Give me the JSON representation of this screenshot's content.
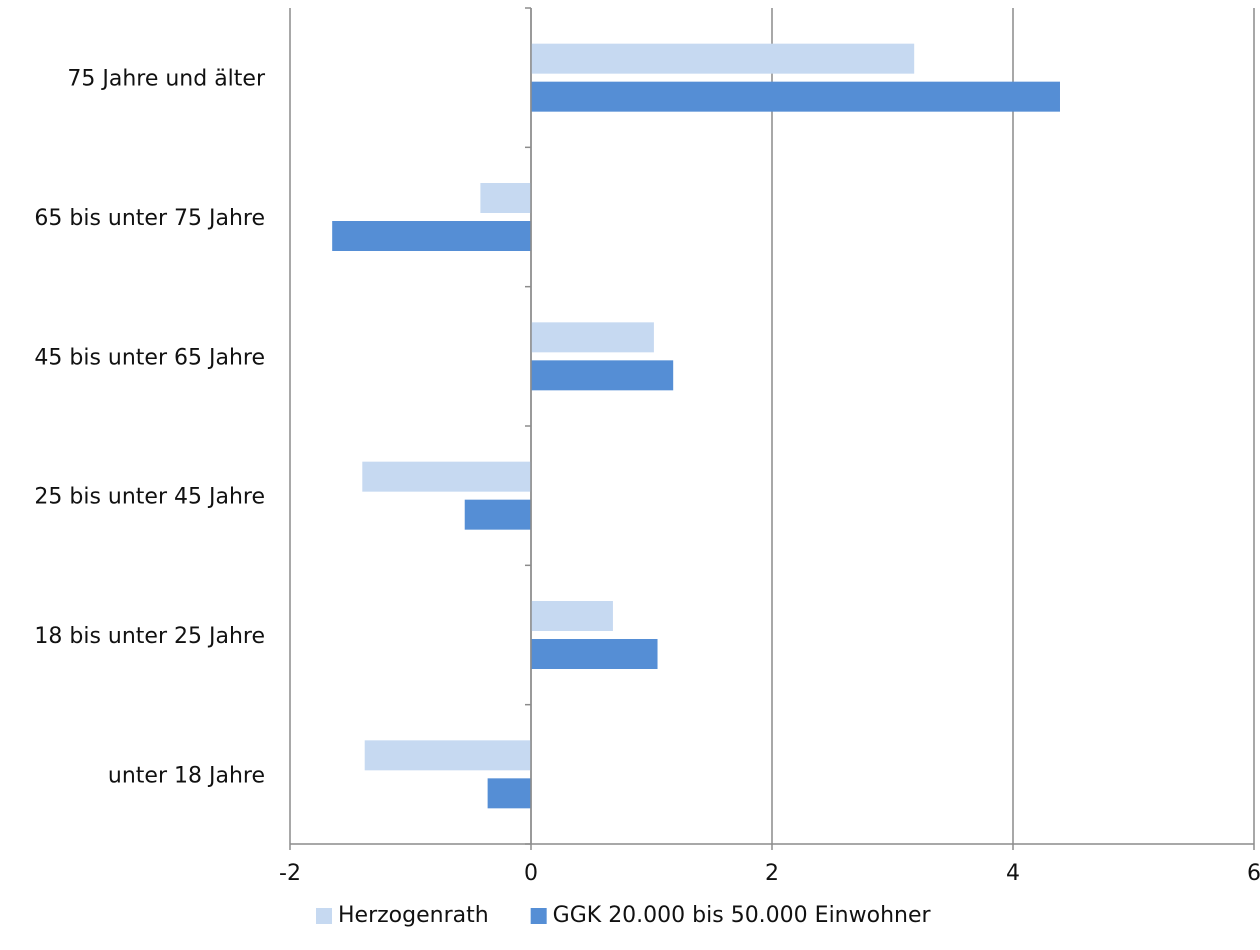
{
  "chart_data": {
    "type": "bar",
    "orientation": "horizontal",
    "categories": [
      "75 Jahre und älter",
      "65 bis unter 75 Jahre",
      "45 bis unter 65 Jahre",
      "25 bis unter 45 Jahre",
      "18 bis unter 25 Jahre",
      "unter 18 Jahre"
    ],
    "series": [
      {
        "name": "Herzogenrath",
        "color": "#c6d9f1",
        "values": [
          3.18,
          -0.42,
          1.02,
          -1.4,
          0.68,
          -1.38
        ]
      },
      {
        "name": "GGK 20.000 bis 50.000 Einwohner",
        "color": "#558ed5",
        "values": [
          4.39,
          -1.65,
          1.18,
          -0.55,
          1.05,
          -0.36
        ]
      }
    ],
    "xlim": [
      -2,
      6
    ],
    "xticks": [
      "-2",
      "0",
      "2",
      "4",
      "6"
    ],
    "grid": true,
    "legend": "bottom",
    "title": "",
    "xlabel": "",
    "ylabel": ""
  }
}
